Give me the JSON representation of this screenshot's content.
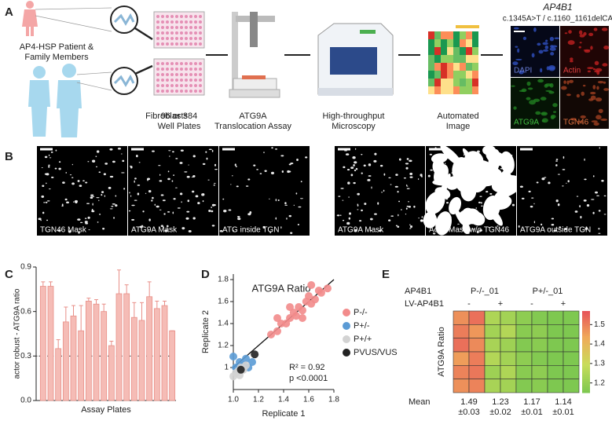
{
  "panel_letters": [
    "A",
    "B",
    "C",
    "D",
    "E"
  ],
  "workflow": {
    "patient_label": [
      "AP4-HSP Patient &",
      "Family Members"
    ],
    "fibroblasts": "Fibroblasts",
    "steps": [
      [
        "96 or 384",
        "Well Plates"
      ],
      [
        "ATG9A",
        "Translocation Assay"
      ],
      [
        "High-throughput",
        "Microscopy"
      ],
      [
        "Automated",
        "Image"
      ]
    ]
  },
  "cell_images": {
    "gene": "AP4B1",
    "variant": "c.1345A>T / c.1160_1161delCA",
    "channels": [
      "DAPI",
      "Actin",
      "ATG9A",
      "TGN46"
    ]
  },
  "masks": [
    "TGN46 Mask",
    "ATG9A Mask",
    "ATG inside TGN",
    "ATG9A Mask",
    "Actin Mask w/o TGN46",
    "ATG9A outside TGN"
  ],
  "chart_data": [
    {
      "type": "bar",
      "ylabel": "actor robust - ATG9A ratio",
      "xlabel": "Assay Plates",
      "values": [
        0.77,
        0.77,
        0.35,
        0.53,
        0.57,
        0.47,
        0.67,
        0.65,
        0.6,
        0.37,
        0.72,
        0.72,
        0.56,
        0.54,
        0.7,
        0.62,
        0.64,
        0.47
      ],
      "errors": [
        0.03,
        0.03,
        0.06,
        0.1,
        0.07,
        0.17,
        0.02,
        0.03,
        0.05,
        0.03,
        0.16,
        0.06,
        0.1,
        0.12,
        0.1,
        0.05,
        0.03,
        0
      ],
      "threshold": 0.3,
      "color": "#f5bcb6",
      "ylim": [
        0,
        0.9
      ],
      "yticks": [
        {
          "value": 0,
          "label": "0.0"
        },
        0.3,
        0.6,
        0.9
      ]
    },
    {
      "type": "scatter",
      "title": "ATG9A Ratio",
      "xlabel": "Replicate 1",
      "ylabel": "Replicate 2",
      "annotations": [
        "R² = 0.92",
        "p <0.0001"
      ],
      "xlim": [
        1.0,
        1.8
      ],
      "xticks": [
        {
          "value": 1,
          "label": "1.0"
        },
        1.2,
        1.4,
        1.6,
        1.8
      ],
      "ylim": [
        0.8,
        1.85
      ],
      "yticks": [
        1,
        1.2,
        1.4,
        1.6,
        1.8
      ],
      "series": [
        {
          "name": "P-/-",
          "color": "#f28b8b",
          "x": [
            1.3,
            1.35,
            1.38,
            1.42,
            1.45,
            1.48,
            1.5,
            1.52,
            1.55,
            1.58,
            1.6,
            1.62,
            1.65,
            1.68,
            1.7,
            1.45,
            1.55,
            1.35,
            1.75,
            1.62
          ],
          "values": [
            1.3,
            1.33,
            1.4,
            1.4,
            1.45,
            1.5,
            1.47,
            1.55,
            1.52,
            1.6,
            1.65,
            1.58,
            1.62,
            1.7,
            1.68,
            1.55,
            1.45,
            1.45,
            1.72,
            1.75
          ]
        },
        {
          "name": "P+/-",
          "color": "#5b9bd5",
          "x": [
            1.0,
            1.02,
            1.05,
            1.08,
            1.1,
            1.12,
            1.03,
            1.15
          ],
          "values": [
            1.1,
            1.0,
            1.05,
            1.02,
            1.08,
            1.0,
            0.98,
            1.05
          ]
        },
        {
          "name": "P+/+",
          "color": "#d3d3d3",
          "x": [
            1.0,
            1.02,
            1.04,
            1.06,
            1.08,
            1.1,
            1.05
          ],
          "values": [
            0.92,
            0.95,
            0.97,
            1.0,
            0.98,
            1.02,
            0.93
          ]
        },
        {
          "name": "PVUS/VUS",
          "color": "#222222",
          "x": [
            1.06,
            1.17
          ],
          "values": [
            0.98,
            1.12
          ]
        }
      ]
    },
    {
      "type": "heatmap",
      "row_title": "AP4B1",
      "groups": [
        "P-/-_01",
        "P+/-_01"
      ],
      "treatment_title": "LV-AP4B1",
      "treatments": [
        "-",
        "+",
        "-",
        "+"
      ],
      "ylabel": "ATG9A Ratio",
      "mean_title": "Mean",
      "means": [
        1.49,
        1.23,
        1.17,
        1.14
      ],
      "sd_labels": [
        "±0.03",
        "±0.02",
        "±0.01",
        "±0.01"
      ],
      "values": [
        [
          1.47,
          1.52,
          1.24,
          1.22,
          1.18,
          1.16,
          1.15,
          1.13
        ],
        [
          1.5,
          1.46,
          1.22,
          1.25,
          1.17,
          1.18,
          1.14,
          1.15
        ],
        [
          1.52,
          1.48,
          1.23,
          1.21,
          1.16,
          1.17,
          1.13,
          1.14
        ],
        [
          1.45,
          1.5,
          1.25,
          1.22,
          1.18,
          1.16,
          1.15,
          1.13
        ],
        [
          1.49,
          1.51,
          1.21,
          1.24,
          1.17,
          1.18,
          1.14,
          1.12
        ],
        [
          1.47,
          1.49,
          1.23,
          1.22,
          1.16,
          1.17,
          1.15,
          1.14
        ]
      ],
      "zlim": [
        1.15,
        1.57
      ],
      "zticks": [
        1.2,
        1.3,
        1.4,
        1.5
      ],
      "colorscale": [
        "#7ec850",
        "#c8dc5a",
        "#f0aa5a",
        "#e6505a"
      ]
    }
  ]
}
